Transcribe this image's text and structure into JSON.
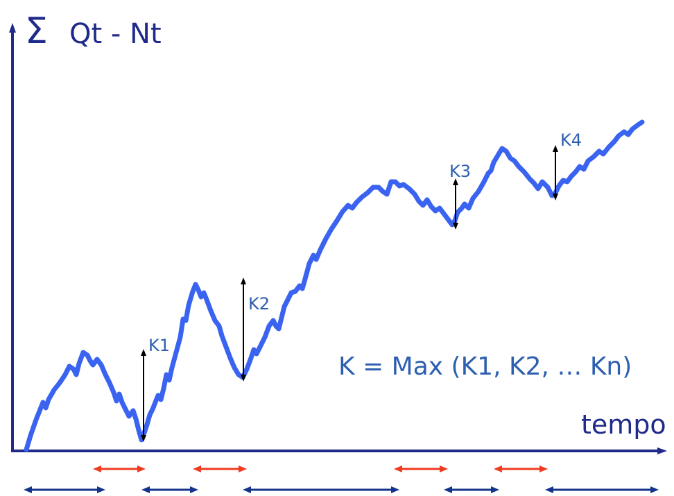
{
  "labels": {
    "sigma": "Σ",
    "y_axis": "Qt - Nt",
    "x_axis": "tempo",
    "formula": "K = Max (K1, K2, … Kn)",
    "k1": "K1",
    "k2": "K2",
    "k3": "K3",
    "k4": "K4"
  },
  "colors": {
    "axis": "#1f2a8a",
    "curve": "#3a63f0",
    "label_text": "#2d5fb0",
    "marker": "#000000",
    "dark_interval": "#14348c",
    "red_interval": "#f03b20"
  }
}
